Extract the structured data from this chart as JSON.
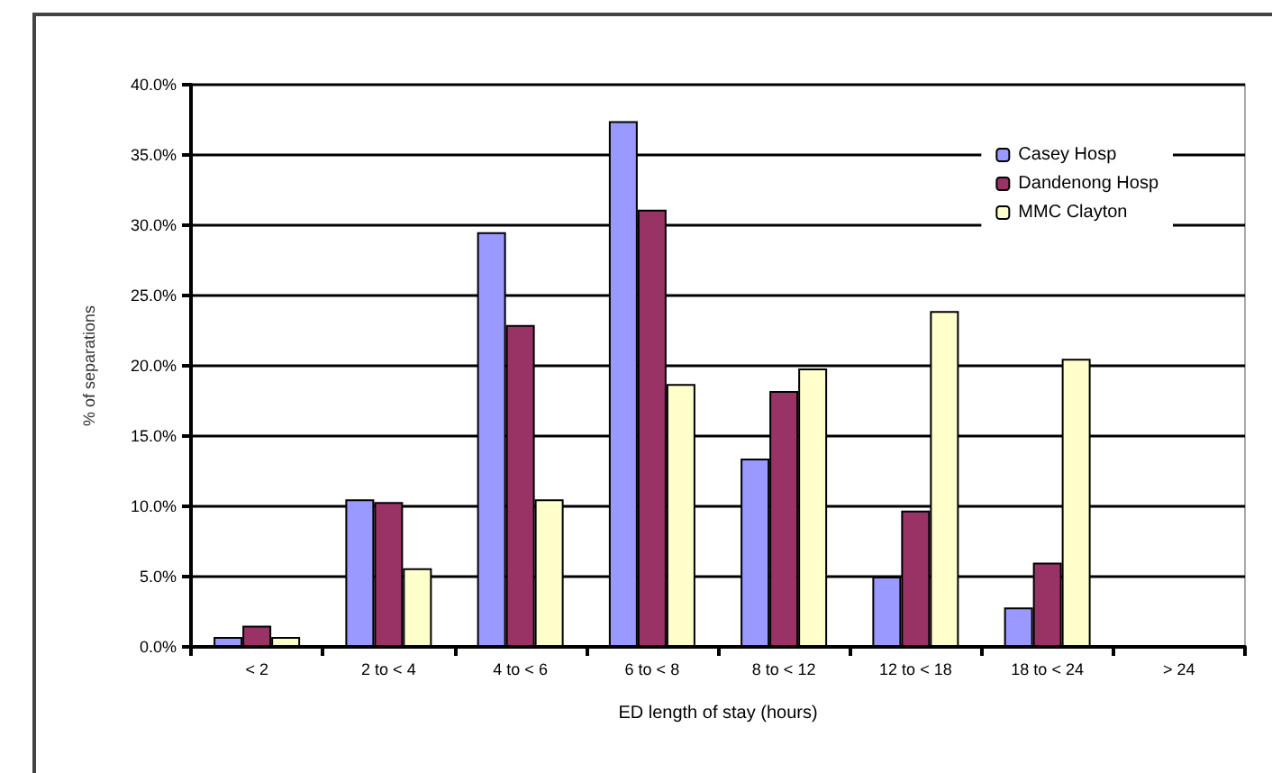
{
  "chart_data": {
    "type": "bar",
    "xlabel": "ED length of stay (hours)",
    "ylabel": "% of separations",
    "categories": [
      "< 2",
      "2 to < 4",
      "4 to < 6",
      "6 to < 8",
      "8 to < 12",
      "12 to < 18",
      "18 to < 24",
      "> 24"
    ],
    "series": [
      {
        "name": "Casey Hosp",
        "color": "#9999ff",
        "values": [
          0.7,
          10.5,
          29.5,
          37.4,
          13.4,
          5.0,
          2.8,
          null
        ]
      },
      {
        "name": "Dandenong Hosp",
        "color": "#993366",
        "values": [
          1.5,
          10.3,
          22.9,
          31.1,
          18.2,
          9.7,
          6.0,
          null
        ]
      },
      {
        "name": "MMC Clayton",
        "color": "#ffffcc",
        "values": [
          0.7,
          5.6,
          10.5,
          18.7,
          19.8,
          23.9,
          20.5,
          null
        ]
      }
    ],
    "ylim": [
      0,
      40
    ],
    "yticks": [
      {
        "value": 0,
        "label": "0.0%"
      },
      {
        "value": 5,
        "label": "5.0%"
      },
      {
        "value": 10,
        "label": "10.0%"
      },
      {
        "value": 15,
        "label": "15.0%"
      },
      {
        "value": 20,
        "label": "20.0%"
      },
      {
        "value": 25,
        "label": "25.0%"
      },
      {
        "value": 30,
        "label": "30.0%"
      },
      {
        "value": 35,
        "label": "35.0%"
      },
      {
        "value": 40,
        "label": "40.0%"
      }
    ],
    "grid": "y",
    "legend": "top right"
  }
}
